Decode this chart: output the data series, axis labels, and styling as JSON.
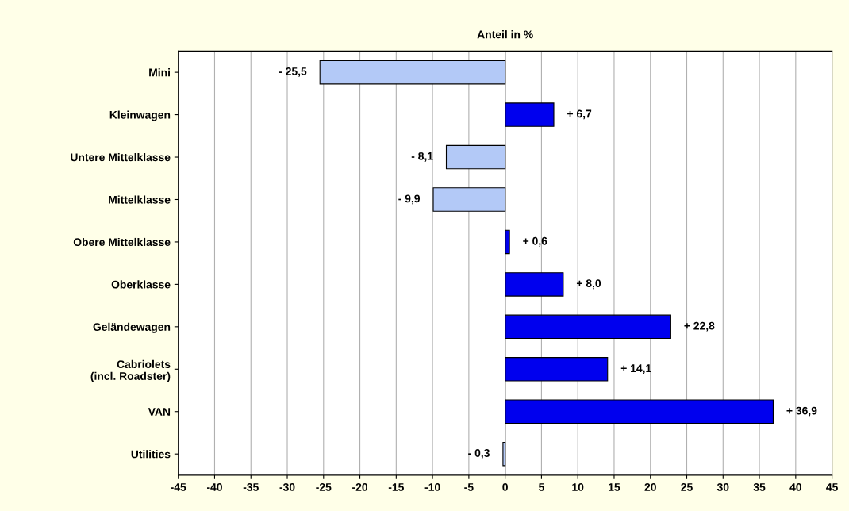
{
  "chart_data": {
    "type": "bar",
    "orientation": "horizontal",
    "title": "Anteil in %",
    "categories": [
      "Mini",
      "Kleinwagen",
      "Untere Mittelklasse",
      "Mittelklasse",
      "Obere Mittelklasse",
      "Oberklasse",
      "Geländewagen",
      "Cabriolets\n(incl. Roadster)",
      "VAN",
      "Utilities"
    ],
    "values": [
      -25.5,
      6.7,
      -8.1,
      -9.9,
      0.6,
      8.0,
      22.8,
      14.1,
      36.9,
      -0.3
    ],
    "value_labels": [
      "- 25,5",
      "+ 6,7",
      "- 8,1",
      "- 9,9",
      "+ 0,6",
      "+ 8,0",
      "+ 22,8",
      "+ 14,1",
      "+ 36,9",
      "- 0,3"
    ],
    "colors": [
      "#b3c9f7",
      "#0000ee",
      "#b3c9f7",
      "#b3c9f7",
      "#0000ee",
      "#0000ee",
      "#0000ee",
      "#0000ee",
      "#0000ee",
      "#b3c9f7"
    ],
    "xlim": [
      -45,
      45
    ],
    "xticks": [
      -45,
      -40,
      -35,
      -30,
      -25,
      -20,
      -15,
      -10,
      -5,
      0,
      5,
      10,
      15,
      20,
      25,
      30,
      35,
      40,
      45
    ],
    "grid": "x"
  }
}
